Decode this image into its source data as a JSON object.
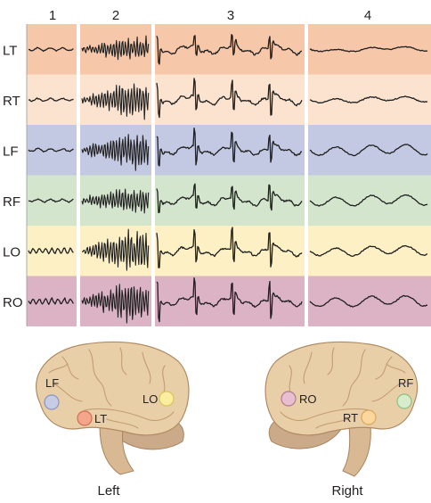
{
  "columns": [
    {
      "id": "1",
      "label": "1"
    },
    {
      "id": "2",
      "label": "2"
    },
    {
      "id": "3",
      "label": "3"
    },
    {
      "id": "4",
      "label": "4"
    }
  ],
  "rows": [
    {
      "id": "LT",
      "label": "LT",
      "color": "#f6c7a9",
      "light": "#fbe1cf"
    },
    {
      "id": "RT",
      "label": "RT",
      "color": "#fbe3cf",
      "light": "#fdf0e4"
    },
    {
      "id": "LF",
      "label": "LF",
      "color": "#c4c9e3",
      "light": "#dfe2f0"
    },
    {
      "id": "RF",
      "label": "RF",
      "color": "#d3e5cd",
      "light": "#e8f1e4"
    },
    {
      "id": "LO",
      "label": "LO",
      "color": "#fcf0c4",
      "light": "#fef7e0"
    },
    {
      "id": "RO",
      "label": "RO",
      "color": "#dcb3c5",
      "light": "#ecd4de"
    }
  ],
  "left_brain": {
    "caption": "Left",
    "electrodes": [
      {
        "label": "LF",
        "color": "#c7cce6",
        "ring": "#8a93c4"
      },
      {
        "label": "LT",
        "color": "#f3a68c",
        "ring": "#d66c55"
      },
      {
        "label": "LO",
        "color": "#fbef9f",
        "ring": "#d8c45a"
      }
    ]
  },
  "right_brain": {
    "caption": "Right",
    "electrodes": [
      {
        "label": "RO",
        "color": "#e7bfd1",
        "ring": "#b57893"
      },
      {
        "label": "RT",
        "color": "#fbd79e",
        "ring": "#d9a859"
      },
      {
        "label": "RF",
        "color": "#d6eccd",
        "ring": "#8fbd80"
      }
    ]
  },
  "colors": {
    "brain": "#e9cfa8",
    "brain_shade": "#cfa77c",
    "cerebellum": "#cbaa8a",
    "trace": "#1f1f1f",
    "divider": "#ffffff"
  }
}
